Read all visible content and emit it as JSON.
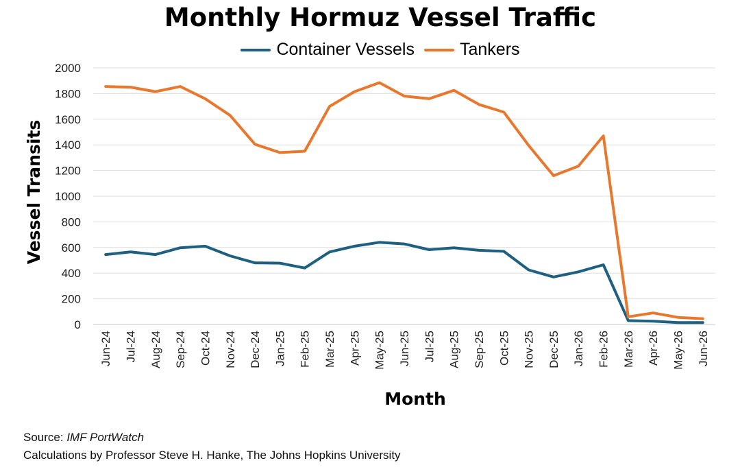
{
  "chart_data": {
    "type": "line",
    "title": "Monthly Hormuz Vessel Traffic",
    "xlabel": "Month",
    "ylabel": "Vessel Transits",
    "ylim": [
      0,
      2000
    ],
    "yticks": [
      0,
      200,
      400,
      600,
      800,
      1000,
      1200,
      1400,
      1600,
      1800,
      2000
    ],
    "grid": true,
    "legend_position": "top",
    "categories": [
      "Jun-24",
      "Jul-24",
      "Aug-24",
      "Sep-24",
      "Oct-24",
      "Nov-24",
      "Dec-24",
      "Jan-25",
      "Feb-25",
      "Mar-25",
      "Apr-25",
      "May-25",
      "Jun-25",
      "Jul-25",
      "Aug-25",
      "Sep-25",
      "Oct-25",
      "Nov-25",
      "Dec-25",
      "Jan-26",
      "Feb-26",
      "Mar-26",
      "Apr-26",
      "May-26",
      "Jun-26"
    ],
    "series": [
      {
        "name": "Container Vessels",
        "color": "#1f5f7f",
        "values": [
          545,
          565,
          545,
          598,
          610,
          535,
          480,
          478,
          440,
          565,
          610,
          640,
          628,
          583,
          598,
          578,
          570,
          425,
          370,
          410,
          465,
          30,
          25,
          15,
          15
        ]
      },
      {
        "name": "Tankers",
        "color": "#e8782e",
        "values": [
          1855,
          1850,
          1815,
          1855,
          1760,
          1630,
          1405,
          1340,
          1350,
          1700,
          1815,
          1885,
          1780,
          1760,
          1825,
          1715,
          1655,
          1395,
          1160,
          1235,
          1470,
          60,
          90,
          55,
          45
        ]
      }
    ]
  },
  "footer": {
    "source_prefix": "Source: ",
    "source_name": "IMF PortWatch",
    "credit": "Calculations by Professor Steve H. Hanke, The Johns Hopkins University"
  }
}
